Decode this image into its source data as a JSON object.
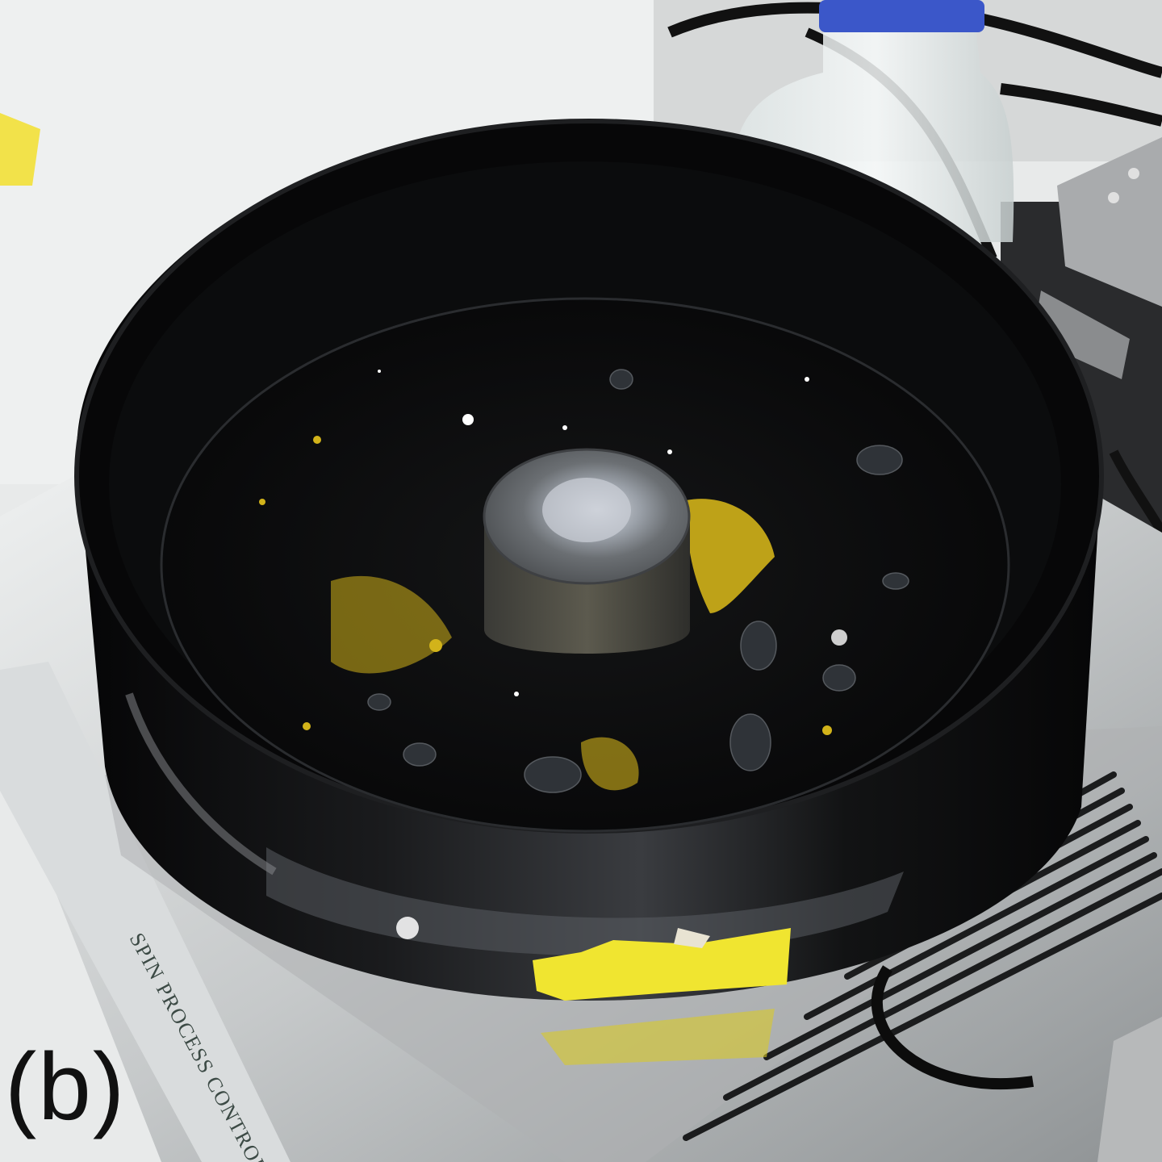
{
  "figure": {
    "panel_label": "(b)",
    "device_label": "SPIN PROCESS CONTROL"
  },
  "colors": {
    "bowl": "#0b0b0c",
    "steel": "#c9cccd",
    "residue_yellow": "#d2b31a",
    "tape_yellow": "#f0e530",
    "chuck": "#55585a",
    "bottle_cap": "#3b57c9"
  },
  "icons": {
    "tape": "yellow-tape-strip",
    "chuck": "vacuum-chuck",
    "bottle": "glass-reagent-bottle"
  }
}
